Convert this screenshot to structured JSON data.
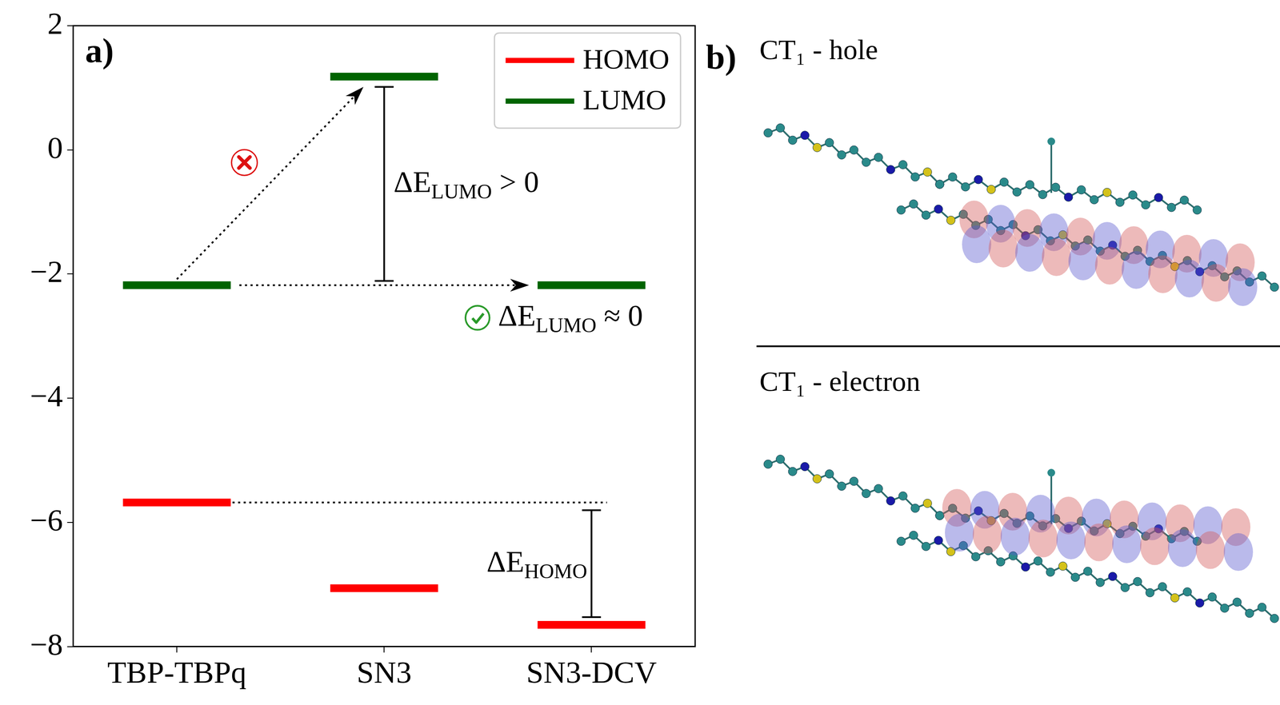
{
  "chart_data": {
    "type": "levels",
    "panel": "a)",
    "categories": [
      "TBP-TBPq",
      "SN3",
      "SN3-DCV"
    ],
    "series": [
      {
        "name": "HOMO",
        "color": "#ff0000",
        "values": [
          -5.68,
          -7.06,
          -7.65
        ]
      },
      {
        "name": "LUMO",
        "color": "#006400",
        "values": [
          -2.18,
          1.18,
          -2.18
        ]
      }
    ],
    "ylim": [
      -8,
      2
    ],
    "yticks": [
      {
        "value": -8,
        "label": "−8"
      },
      {
        "value": -6,
        "label": "−6"
      },
      {
        "value": -4,
        "label": "−4"
      },
      {
        "value": -2,
        "label": "−2"
      },
      0,
      2
    ],
    "grid": false,
    "legend": "upper right",
    "annotations": [
      {
        "text": "ΔE",
        "sub": "LUMO",
        "suffix": " > 0"
      },
      {
        "text": "ΔE",
        "sub": "LUMO",
        "suffix": " ≈ 0"
      },
      {
        "text": "ΔE",
        "sub": "HOMO"
      }
    ]
  },
  "panel_b": {
    "label": "b)",
    "hole_title": "CT₁ - hole",
    "electron_title": "CT₁ - electron"
  }
}
